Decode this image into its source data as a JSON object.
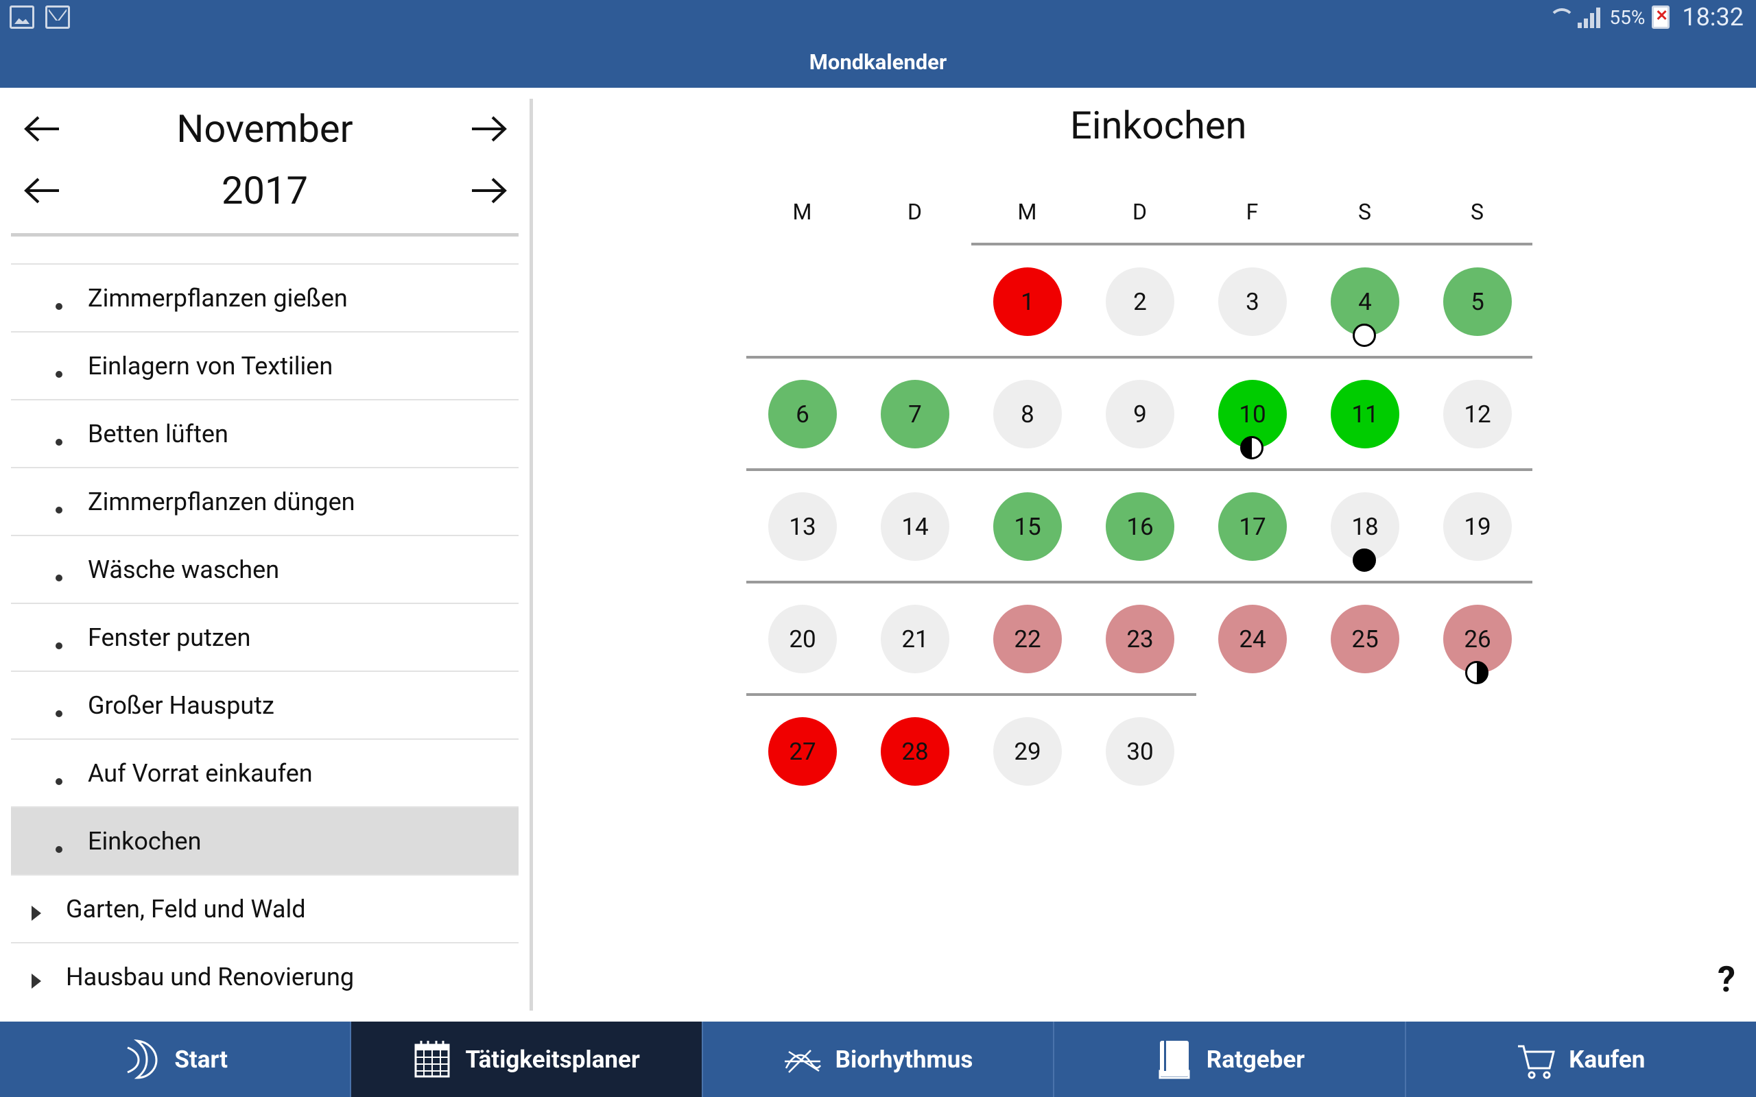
{
  "status": {
    "battery": "55%",
    "time": "18:32"
  },
  "app": {
    "title": "Mondkalender"
  },
  "nav": {
    "month": "November",
    "year": "2017"
  },
  "list": {
    "items": [
      "Zimmerpflanzen gießen",
      "Einlagern von Textilien",
      "Betten lüften",
      "Zimmerpflanzen düngen",
      "Wäsche waschen",
      "Fenster putzen",
      "Großer Hausputz",
      "Auf Vorrat einkaufen",
      "Einkochen"
    ],
    "categories": [
      "Garten, Feld und Wald",
      "Hausbau und Renovierung"
    ]
  },
  "calendar": {
    "title": "Einkochen",
    "weekdays": [
      "M",
      "D",
      "M",
      "D",
      "F",
      "S",
      "S"
    ],
    "days": [
      "1",
      "2",
      "3",
      "4",
      "5",
      "6",
      "7",
      "8",
      "9",
      "10",
      "11",
      "12",
      "13",
      "14",
      "15",
      "16",
      "17",
      "18",
      "19",
      "20",
      "21",
      "22",
      "23",
      "24",
      "25",
      "26",
      "27",
      "28",
      "29",
      "30"
    ],
    "rating_legend": {
      "g0": "#eeeeee",
      "g1": "#66bb6a",
      "g2": "#00cc00",
      "r1": "#d68d90",
      "r2": "#f00000"
    }
  },
  "help": "?",
  "tabs": [
    "Start",
    "Tätigkeitsplaner",
    "Biorhythmus",
    "Ratgeber",
    "Kaufen"
  ]
}
